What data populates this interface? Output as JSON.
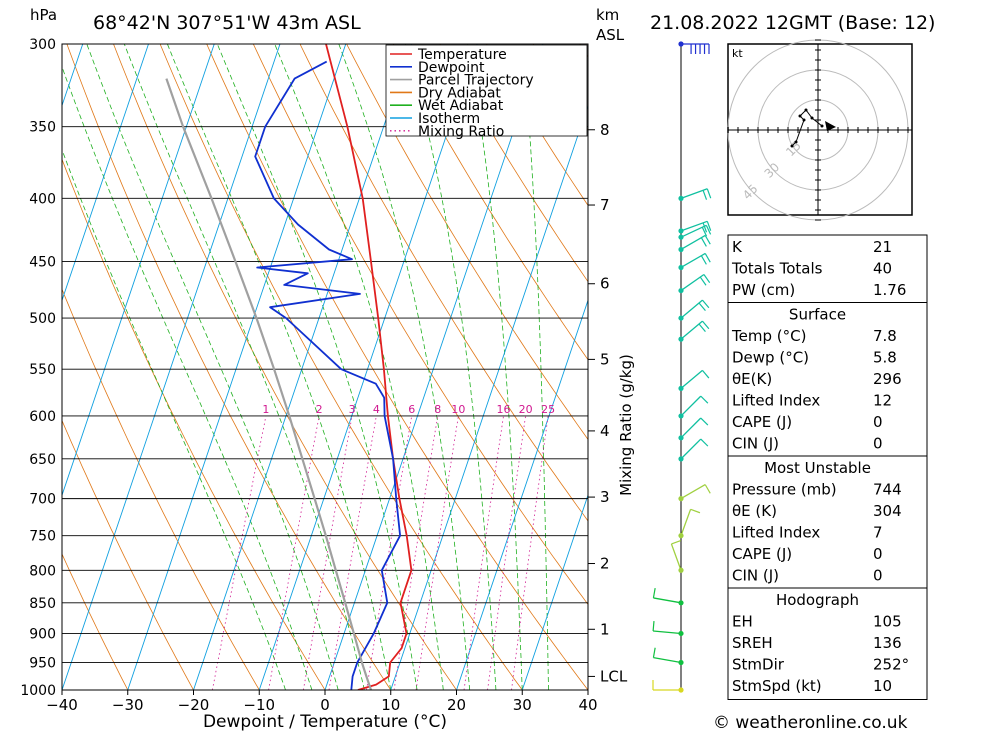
{
  "header": {
    "pressure_unit": "hPa",
    "location": "68°42'N 307°51'W 43m ASL",
    "height_unit_line1": "km",
    "height_unit_line2": "ASL",
    "datetime": "21.08.2022 12GMT (Base: 12)"
  },
  "footer": {
    "credit": "© weatheronline.co.uk"
  },
  "colors": {
    "temperature": "#e02020",
    "dewpoint": "#1030d0",
    "parcel": "#a0a0a0",
    "dry_adiabat": "#e07818",
    "wet_adiabat": "#20b020",
    "isotherm": "#10a0e0",
    "mixing_ratio": "#d01890"
  },
  "chart_data": {
    "type": "line",
    "title": "68°42'N 307°51'W 43m ASL",
    "xlabel": "Dewpoint / Temperature (°C)",
    "ylabel": "hPa",
    "xlim": [
      -40,
      40
    ],
    "ylim": [
      1000,
      300
    ],
    "y_scale": "log",
    "x_ticks": [
      "−40",
      "−30",
      "−20",
      "−10",
      "0",
      "10",
      "20",
      "30",
      "40"
    ],
    "pressure_ticks": [
      300,
      350,
      400,
      450,
      500,
      550,
      600,
      650,
      700,
      750,
      800,
      850,
      900,
      950,
      1000
    ],
    "km_ticks": [
      {
        "label": "8",
        "p": 352
      },
      {
        "label": "7",
        "p": 405
      },
      {
        "label": "6",
        "p": 469
      },
      {
        "label": "5",
        "p": 540
      },
      {
        "label": "4",
        "p": 617
      },
      {
        "label": "3",
        "p": 698
      },
      {
        "label": "2",
        "p": 790
      },
      {
        "label": "1",
        "p": 893
      },
      {
        "label": "LCL",
        "p": 975
      }
    ],
    "right_axis_label": "Mixing Ratio (g/kg)",
    "mixing_ratio_labels": [
      "1",
      "2",
      "3",
      "4",
      "6",
      "8",
      "10",
      "16",
      "20",
      "25"
    ],
    "mixing_ratio_values": [
      1,
      2,
      3,
      4,
      6,
      8,
      10,
      16,
      20,
      25
    ],
    "grid": true,
    "legend_position": "top-right",
    "legend": [
      "Temperature",
      "Dewpoint",
      "Parcel Trajectory",
      "Dry Adiabat",
      "Wet Adiabat",
      "Isotherm",
      "Mixing Ratio"
    ],
    "series": [
      {
        "name": "Temperature",
        "points": [
          [
            1000,
            5
          ],
          [
            990,
            7.5
          ],
          [
            975,
            9
          ],
          [
            950,
            8.5
          ],
          [
            925,
            9.5
          ],
          [
            900,
            9.5
          ],
          [
            850,
            7
          ],
          [
            800,
            7
          ],
          [
            750,
            4.5
          ],
          [
            700,
            1.5
          ],
          [
            650,
            -1.5
          ],
          [
            600,
            -4.5
          ],
          [
            550,
            -7.5
          ],
          [
            500,
            -11
          ],
          [
            450,
            -15
          ],
          [
            400,
            -19.5
          ],
          [
            350,
            -25.5
          ],
          [
            300,
            -33
          ]
        ]
      },
      {
        "name": "Dewpoint",
        "points": [
          [
            1000,
            4
          ],
          [
            975,
            3.5
          ],
          [
            950,
            3.5
          ],
          [
            925,
            4
          ],
          [
            900,
            4.5
          ],
          [
            850,
            5
          ],
          [
            800,
            2.5
          ],
          [
            750,
            3.5
          ],
          [
            700,
            1
          ],
          [
            650,
            -1.5
          ],
          [
            600,
            -5
          ],
          [
            580,
            -6
          ],
          [
            565,
            -8
          ],
          [
            550,
            -14
          ],
          [
            500,
            -25
          ],
          [
            490,
            -28
          ],
          [
            478,
            -15
          ],
          [
            470,
            -27
          ],
          [
            460,
            -24
          ],
          [
            455,
            -32
          ],
          [
            448,
            -18
          ],
          [
            440,
            -22
          ],
          [
            420,
            -28
          ],
          [
            400,
            -33
          ],
          [
            370,
            -38
          ],
          [
            350,
            -38
          ],
          [
            320,
            -36
          ],
          [
            310,
            -32
          ]
        ]
      },
      {
        "name": "Parcel Trajectory",
        "points": [
          [
            1000,
            7
          ],
          [
            975,
            5.6
          ],
          [
            950,
            4.2
          ],
          [
            900,
            1.5
          ],
          [
            850,
            -1.4
          ],
          [
            800,
            -4.5
          ],
          [
            750,
            -7.8
          ],
          [
            700,
            -11.4
          ],
          [
            650,
            -15.3
          ],
          [
            600,
            -19.5
          ],
          [
            550,
            -24.2
          ],
          [
            500,
            -29.5
          ],
          [
            450,
            -35.6
          ],
          [
            400,
            -42.5
          ],
          [
            350,
            -50.5
          ],
          [
            320,
            -55.5
          ]
        ]
      }
    ],
    "dry_adiabats_theta_c": [
      -30,
      -20,
      -10,
      0,
      10,
      20,
      30,
      40,
      50,
      60,
      70,
      80,
      90,
      100,
      110,
      120,
      130,
      140,
      150,
      160
    ],
    "wet_adiabats_thetaw_c": [
      -6,
      -2,
      2,
      6,
      10,
      14,
      18,
      22,
      26,
      30,
      34
    ],
    "isotherms_c": [
      -100,
      -90,
      -80,
      -70,
      -60,
      -50,
      -40,
      -30,
      -20,
      -10,
      0,
      10,
      20,
      30,
      40
    ],
    "wind_profile": [
      {
        "p": 300,
        "dir": 270,
        "kt": 45
      },
      {
        "p": 400,
        "dir": 250,
        "kt": 20
      },
      {
        "p": 425,
        "dir": 250,
        "kt": 15
      },
      {
        "p": 430,
        "dir": 245,
        "kt": 15
      },
      {
        "p": 440,
        "dir": 240,
        "kt": 15
      },
      {
        "p": 455,
        "dir": 240,
        "kt": 15
      },
      {
        "p": 475,
        "dir": 235,
        "kt": 15
      },
      {
        "p": 500,
        "dir": 230,
        "kt": 15
      },
      {
        "p": 520,
        "dir": 230,
        "kt": 15
      },
      {
        "p": 570,
        "dir": 230,
        "kt": 10
      },
      {
        "p": 600,
        "dir": 225,
        "kt": 10
      },
      {
        "p": 625,
        "dir": 225,
        "kt": 10
      },
      {
        "p": 650,
        "dir": 225,
        "kt": 10
      },
      {
        "p": 700,
        "dir": 240,
        "kt": 5
      },
      {
        "p": 750,
        "dir": 200,
        "kt": 5
      },
      {
        "p": 800,
        "dir": 160,
        "kt": 5
      },
      {
        "p": 850,
        "dir": 100,
        "kt": 10
      },
      {
        "p": 900,
        "dir": 95,
        "kt": 10
      },
      {
        "p": 950,
        "dir": 100,
        "kt": 10
      },
      {
        "p": 1000,
        "dir": 90,
        "kt": 10
      }
    ],
    "hodograph": {
      "unit": "kt",
      "rings_kt": [
        15,
        30,
        45
      ],
      "ring_labels": [
        "15",
        "30",
        "45"
      ],
      "points_uv": [
        [
          2,
          2
        ],
        [
          -3,
          6
        ],
        [
          -6,
          10
        ],
        [
          -9,
          7
        ],
        [
          -7,
          5
        ],
        [
          -11,
          -6
        ],
        [
          -13,
          -8
        ]
      ],
      "storm_motion_uv": [
        6,
        2
      ]
    }
  },
  "indices": {
    "top": [
      {
        "label": "K",
        "value": "21"
      },
      {
        "label": "Totals Totals",
        "value": "40"
      },
      {
        "label": "PW (cm)",
        "value": "1.76"
      }
    ],
    "surface": {
      "title": "Surface",
      "rows": [
        {
          "label": "Temp (°C)",
          "value": "7.8"
        },
        {
          "label": "Dewp (°C)",
          "value": "5.8"
        },
        {
          "label": "θE(K)",
          "value": "296"
        },
        {
          "label": "Lifted Index",
          "value": "12"
        },
        {
          "label": "CAPE (J)",
          "value": "0"
        },
        {
          "label": "CIN (J)",
          "value": "0"
        }
      ]
    },
    "most_unstable": {
      "title": "Most Unstable",
      "rows": [
        {
          "label": "Pressure (mb)",
          "value": "744"
        },
        {
          "label": "θE (K)",
          "value": "304"
        },
        {
          "label": "Lifted Index",
          "value": "7"
        },
        {
          "label": "CAPE (J)",
          "value": "0"
        },
        {
          "label": "CIN (J)",
          "value": "0"
        }
      ]
    },
    "hodograph": {
      "title": "Hodograph",
      "rows": [
        {
          "label": "EH",
          "value": "105"
        },
        {
          "label": "SREH",
          "value": "136"
        },
        {
          "label": "StmDir",
          "value": "252°"
        },
        {
          "label": "StmSpd (kt)",
          "value": "10"
        }
      ]
    }
  }
}
